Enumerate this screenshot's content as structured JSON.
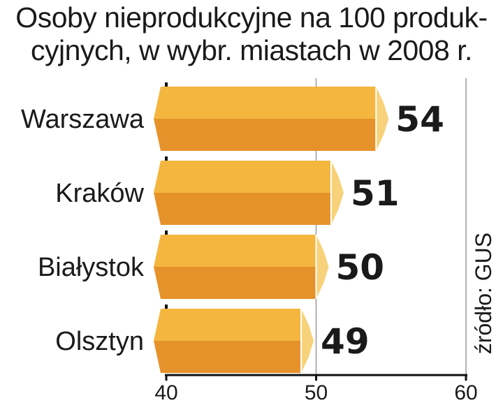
{
  "chart_data": {
    "type": "bar",
    "orientation": "horizontal",
    "title_lines": [
      "Osoby nieprodukcyjne na 100 produk-",
      "cyjnych, w wybr. miastach w 2008 r."
    ],
    "categories": [
      "Warszawa",
      "Kraków",
      "Białystok",
      "Olsztyn"
    ],
    "values": [
      54,
      51,
      50,
      49
    ],
    "value_labels": [
      "54",
      "51",
      "50",
      "49"
    ],
    "xlim": [
      40,
      60
    ],
    "xticks": [
      "40",
      "50",
      "60"
    ],
    "source": "źródło: GUS",
    "colors": {
      "bar_top": "#F4B63F",
      "bar_bottom": "#E6922A",
      "bar_tip": "#F8D27A",
      "grid": "#999999",
      "text": "#1a1a1a"
    }
  }
}
